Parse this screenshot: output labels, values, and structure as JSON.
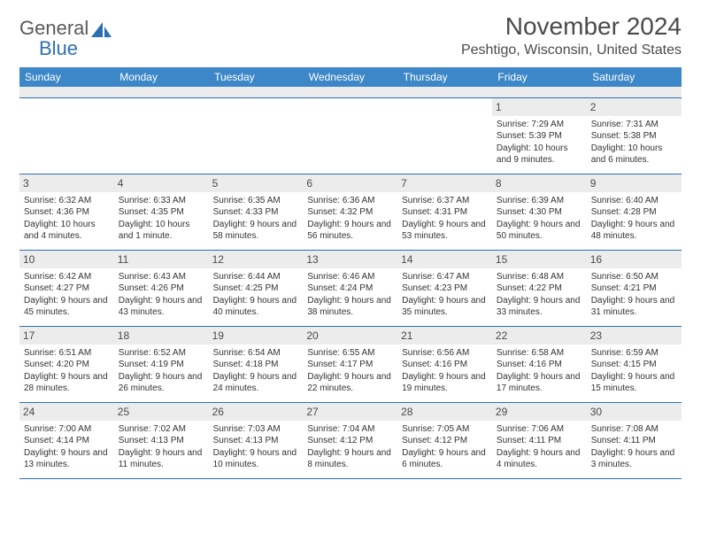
{
  "logo": {
    "line1": "General",
    "line2": "Blue",
    "accent_color": "#2e6fb4",
    "text_color": "#5a5a5a"
  },
  "title": "November 2024",
  "location": "Peshtigo, Wisconsin, United States",
  "header_bg": "#3c87c7",
  "grid_line_color": "#2e6fb4",
  "alt_row_bg": "#ececec",
  "day_headers": [
    "Sunday",
    "Monday",
    "Tuesday",
    "Wednesday",
    "Thursday",
    "Friday",
    "Saturday"
  ],
  "weeks": [
    [
      {
        "n": "",
        "lines": []
      },
      {
        "n": "",
        "lines": []
      },
      {
        "n": "",
        "lines": []
      },
      {
        "n": "",
        "lines": []
      },
      {
        "n": "",
        "lines": []
      },
      {
        "n": "1",
        "lines": [
          "Sunrise: 7:29 AM",
          "Sunset: 5:39 PM",
          "Daylight: 10 hours and 9 minutes."
        ]
      },
      {
        "n": "2",
        "lines": [
          "Sunrise: 7:31 AM",
          "Sunset: 5:38 PM",
          "Daylight: 10 hours and 6 minutes."
        ]
      }
    ],
    [
      {
        "n": "3",
        "lines": [
          "Sunrise: 6:32 AM",
          "Sunset: 4:36 PM",
          "Daylight: 10 hours and 4 minutes."
        ]
      },
      {
        "n": "4",
        "lines": [
          "Sunrise: 6:33 AM",
          "Sunset: 4:35 PM",
          "Daylight: 10 hours and 1 minute."
        ]
      },
      {
        "n": "5",
        "lines": [
          "Sunrise: 6:35 AM",
          "Sunset: 4:33 PM",
          "Daylight: 9 hours and 58 minutes."
        ]
      },
      {
        "n": "6",
        "lines": [
          "Sunrise: 6:36 AM",
          "Sunset: 4:32 PM",
          "Daylight: 9 hours and 56 minutes."
        ]
      },
      {
        "n": "7",
        "lines": [
          "Sunrise: 6:37 AM",
          "Sunset: 4:31 PM",
          "Daylight: 9 hours and 53 minutes."
        ]
      },
      {
        "n": "8",
        "lines": [
          "Sunrise: 6:39 AM",
          "Sunset: 4:30 PM",
          "Daylight: 9 hours and 50 minutes."
        ]
      },
      {
        "n": "9",
        "lines": [
          "Sunrise: 6:40 AM",
          "Sunset: 4:28 PM",
          "Daylight: 9 hours and 48 minutes."
        ]
      }
    ],
    [
      {
        "n": "10",
        "lines": [
          "Sunrise: 6:42 AM",
          "Sunset: 4:27 PM",
          "Daylight: 9 hours and 45 minutes."
        ]
      },
      {
        "n": "11",
        "lines": [
          "Sunrise: 6:43 AM",
          "Sunset: 4:26 PM",
          "Daylight: 9 hours and 43 minutes."
        ]
      },
      {
        "n": "12",
        "lines": [
          "Sunrise: 6:44 AM",
          "Sunset: 4:25 PM",
          "Daylight: 9 hours and 40 minutes."
        ]
      },
      {
        "n": "13",
        "lines": [
          "Sunrise: 6:46 AM",
          "Sunset: 4:24 PM",
          "Daylight: 9 hours and 38 minutes."
        ]
      },
      {
        "n": "14",
        "lines": [
          "Sunrise: 6:47 AM",
          "Sunset: 4:23 PM",
          "Daylight: 9 hours and 35 minutes."
        ]
      },
      {
        "n": "15",
        "lines": [
          "Sunrise: 6:48 AM",
          "Sunset: 4:22 PM",
          "Daylight: 9 hours and 33 minutes."
        ]
      },
      {
        "n": "16",
        "lines": [
          "Sunrise: 6:50 AM",
          "Sunset: 4:21 PM",
          "Daylight: 9 hours and 31 minutes."
        ]
      }
    ],
    [
      {
        "n": "17",
        "lines": [
          "Sunrise: 6:51 AM",
          "Sunset: 4:20 PM",
          "Daylight: 9 hours and 28 minutes."
        ]
      },
      {
        "n": "18",
        "lines": [
          "Sunrise: 6:52 AM",
          "Sunset: 4:19 PM",
          "Daylight: 9 hours and 26 minutes."
        ]
      },
      {
        "n": "19",
        "lines": [
          "Sunrise: 6:54 AM",
          "Sunset: 4:18 PM",
          "Daylight: 9 hours and 24 minutes."
        ]
      },
      {
        "n": "20",
        "lines": [
          "Sunrise: 6:55 AM",
          "Sunset: 4:17 PM",
          "Daylight: 9 hours and 22 minutes."
        ]
      },
      {
        "n": "21",
        "lines": [
          "Sunrise: 6:56 AM",
          "Sunset: 4:16 PM",
          "Daylight: 9 hours and 19 minutes."
        ]
      },
      {
        "n": "22",
        "lines": [
          "Sunrise: 6:58 AM",
          "Sunset: 4:16 PM",
          "Daylight: 9 hours and 17 minutes."
        ]
      },
      {
        "n": "23",
        "lines": [
          "Sunrise: 6:59 AM",
          "Sunset: 4:15 PM",
          "Daylight: 9 hours and 15 minutes."
        ]
      }
    ],
    [
      {
        "n": "24",
        "lines": [
          "Sunrise: 7:00 AM",
          "Sunset: 4:14 PM",
          "Daylight: 9 hours and 13 minutes."
        ]
      },
      {
        "n": "25",
        "lines": [
          "Sunrise: 7:02 AM",
          "Sunset: 4:13 PM",
          "Daylight: 9 hours and 11 minutes."
        ]
      },
      {
        "n": "26",
        "lines": [
          "Sunrise: 7:03 AM",
          "Sunset: 4:13 PM",
          "Daylight: 9 hours and 10 minutes."
        ]
      },
      {
        "n": "27",
        "lines": [
          "Sunrise: 7:04 AM",
          "Sunset: 4:12 PM",
          "Daylight: 9 hours and 8 minutes."
        ]
      },
      {
        "n": "28",
        "lines": [
          "Sunrise: 7:05 AM",
          "Sunset: 4:12 PM",
          "Daylight: 9 hours and 6 minutes."
        ]
      },
      {
        "n": "29",
        "lines": [
          "Sunrise: 7:06 AM",
          "Sunset: 4:11 PM",
          "Daylight: 9 hours and 4 minutes."
        ]
      },
      {
        "n": "30",
        "lines": [
          "Sunrise: 7:08 AM",
          "Sunset: 4:11 PM",
          "Daylight: 9 hours and 3 minutes."
        ]
      }
    ]
  ]
}
